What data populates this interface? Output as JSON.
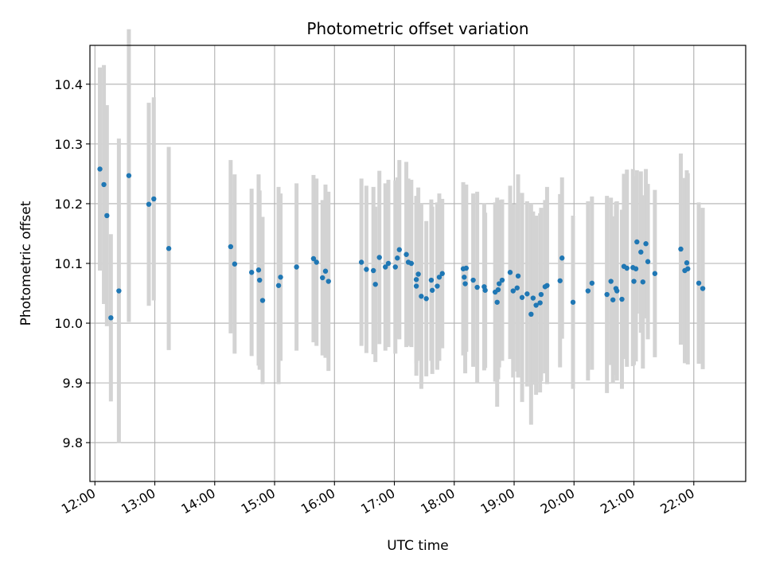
{
  "chart_data": {
    "type": "scatter",
    "title": "Photometric offset variation",
    "xlabel": "UTC time",
    "ylabel": "Photometric offset",
    "grid": true,
    "xlim": [
      "11:55",
      "22:52"
    ],
    "ylim": [
      9.735,
      10.465
    ],
    "x_ticks": [
      "12:00",
      "13:00",
      "14:00",
      "15:00",
      "16:00",
      "17:00",
      "18:00",
      "19:00",
      "20:00",
      "21:00",
      "22:00"
    ],
    "y_ticks": [
      "9.8",
      "9.9",
      "10.0",
      "10.1",
      "10.2",
      "10.3",
      "10.4"
    ],
    "colors": {
      "marker": "#1f77b4",
      "errorbar": "#d3d3d3",
      "grid": "#b0b0b0"
    },
    "series": [
      {
        "x": [
          "12:05",
          "12:09",
          "12:12",
          "12:16",
          "12:24",
          "12:34",
          "12:54",
          "12:59",
          "13:14",
          "14:16",
          "14:20",
          "14:37",
          "14:44",
          "14:45",
          "14:48",
          "15:04",
          "15:06",
          "15:22",
          "15:39",
          "15:42",
          "15:48",
          "15:51",
          "15:54",
          "16:27",
          "16:32",
          "16:39",
          "16:41",
          "16:45",
          "16:51",
          "16:54",
          "17:01",
          "17:03",
          "17:05",
          "17:12",
          "17:14",
          "17:17",
          "17:22",
          "17:22",
          "17:24",
          "17:27",
          "17:32",
          "17:37",
          "17:38",
          "17:43",
          "17:45",
          "17:48",
          "18:09",
          "18:10",
          "18:11",
          "18:12",
          "18:19",
          "18:23",
          "18:30",
          "18:31",
          "18:41",
          "18:43",
          "18:44",
          "18:45",
          "18:48",
          "18:56",
          "18:59",
          "19:03",
          "19:04",
          "19:08",
          "19:13",
          "19:17",
          "19:19",
          "19:22",
          "19:26",
          "19:27",
          "19:31",
          "19:33",
          "19:46",
          "19:48",
          "19:59",
          "20:14",
          "20:18",
          "20:33",
          "20:37",
          "20:39",
          "20:42",
          "20:43",
          "20:48",
          "20:50",
          "20:53",
          "20:59",
          "21:00",
          "21:02",
          "21:03",
          "21:07",
          "21:09",
          "21:12",
          "21:14",
          "21:21",
          "21:47",
          "21:51",
          "21:53",
          "21:54",
          "22:05",
          "22:09"
        ],
        "y": [
          10.258,
          10.232,
          10.18,
          10.009,
          10.054,
          10.247,
          10.199,
          10.208,
          10.125,
          10.128,
          10.099,
          10.085,
          10.089,
          10.072,
          10.038,
          10.063,
          10.077,
          10.094,
          10.108,
          10.102,
          10.076,
          10.087,
          10.07,
          10.102,
          10.09,
          10.088,
          10.065,
          10.11,
          10.094,
          10.1,
          10.094,
          10.109,
          10.123,
          10.115,
          10.102,
          10.1,
          10.062,
          10.073,
          10.082,
          10.045,
          10.041,
          10.072,
          10.055,
          10.062,
          10.077,
          10.083,
          10.091,
          10.077,
          10.066,
          10.092,
          10.072,
          10.06,
          10.061,
          10.055,
          10.052,
          10.035,
          10.056,
          10.066,
          10.072,
          10.085,
          10.054,
          10.059,
          10.079,
          10.043,
          10.049,
          10.015,
          10.042,
          10.03,
          10.034,
          10.048,
          10.061,
          10.063,
          10.071,
          10.109,
          10.035,
          10.054,
          10.067,
          10.048,
          10.07,
          10.039,
          10.058,
          10.054,
          10.04,
          10.095,
          10.092,
          10.093,
          10.07,
          10.091,
          10.136,
          10.119,
          10.069,
          10.133,
          10.103,
          10.083,
          10.124,
          10.088,
          10.101,
          10.091,
          10.067,
          10.058
        ],
        "err": [
          0.17,
          0.2,
          0.185,
          0.14,
          0.255,
          0.245,
          0.17,
          0.17,
          0.17,
          0.145,
          0.15,
          0.14,
          0.16,
          0.15,
          0.14,
          0.165,
          0.14,
          0.14,
          0.14,
          0.14,
          0.13,
          0.145,
          0.15,
          0.14,
          0.14,
          0.14,
          0.13,
          0.145,
          0.14,
          0.14,
          0.145,
          0.135,
          0.15,
          0.155,
          0.14,
          0.14,
          0.15,
          0.14,
          0.145,
          0.155,
          0.13,
          0.135,
          0.14,
          0.14,
          0.14,
          0.125,
          0.145,
          0.13,
          0.15,
          0.14,
          0.145,
          0.16,
          0.14,
          0.13,
          0.15,
          0.175,
          0.15,
          0.14,
          0.135,
          0.145,
          0.145,
          0.14,
          0.17,
          0.175,
          0.155,
          0.185,
          0.145,
          0.15,
          0.15,
          0.145,
          0.145,
          0.165,
          0.145,
          0.135,
          0.145,
          0.15,
          0.145,
          0.165,
          0.14,
          0.14,
          0.145,
          0.15,
          0.15,
          0.155,
          0.165,
          0.165,
          0.14,
          0.155,
          0.12,
          0.135,
          0.145,
          0.125,
          0.13,
          0.14,
          0.16,
          0.155,
          0.155,
          0.16,
          0.135,
          0.135
        ]
      }
    ]
  }
}
